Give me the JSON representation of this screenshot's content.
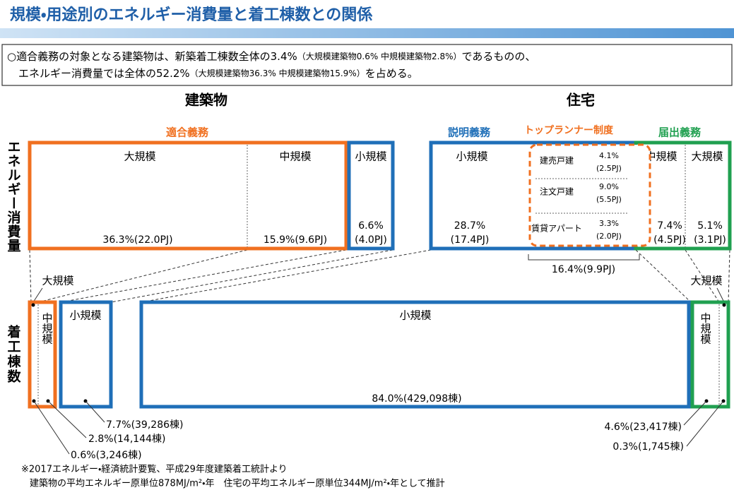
{
  "header": {
    "title": "規模・用途別のエネルギー消費量と着工棟数との関係"
  },
  "summary": {
    "line1": {
      "a": "○適合義務の対象となる建築物は、新築着工棟数全体の3.4%",
      "note": "（大規模建築物0.6% 中規模建築物2.8%）",
      "b": "であるものの、"
    },
    "line2": {
      "a": "エネルギー消費量では全体の52.2%",
      "note": "（大規模建築物36.3% 中規模建築物15.9%）",
      "b": "を占める。"
    }
  },
  "headings": {
    "building": "建築物",
    "house": "住宅"
  },
  "side_labels": {
    "energy": "エネルギー消費量",
    "starts": "着工棟数"
  },
  "groups": {
    "conformity": "適合義務",
    "explanation": "説明義務",
    "top_runner": "トップランナー制度",
    "notification": "届出義務"
  },
  "energy": {
    "building_large": {
      "label": "大規模",
      "value": "36.3%(22.0PJ)"
    },
    "building_medium": {
      "label": "中規模",
      "value": "15.9%(9.6PJ)"
    },
    "building_small": {
      "label": "小規模",
      "value": "6.6%",
      "pj": "(4.0PJ)"
    },
    "house_small": {
      "label": "小規模",
      "value": "28.7%",
      "pj": "(17.4PJ)"
    },
    "top_runner_rows": [
      {
        "label": "建売戸建",
        "value": "4.1%",
        "pj": "(2.5PJ)"
      },
      {
        "label": "注文戸建",
        "value": "9.0%",
        "pj": "(5.5PJ)"
      },
      {
        "label": "賃貸アパート",
        "value": "3.3%",
        "pj": "(2.0PJ)"
      }
    ],
    "top_runner_total": "16.4%(9.9PJ)",
    "house_medium": {
      "label": "中規模",
      "value": "7.4%",
      "pj": "(4.5PJ)"
    },
    "house_large": {
      "label": "大規模",
      "value": "5.1%",
      "pj": "(3.1PJ)"
    }
  },
  "starts": {
    "building_large_label": "大規模",
    "building_medium_label": "中規模",
    "building_small_label": "小規模",
    "house_small": {
      "label": "小規模",
      "value": "84.0%(429,098棟)"
    },
    "house_medium_label": "中規模",
    "house_large_label": "大規模",
    "callouts": [
      "7.7%(39,286棟)",
      "2.8%(14,144棟)",
      "0.6%(3,246棟)",
      "4.6%(23,417棟)",
      "0.3%(1,745棟)"
    ]
  },
  "footnotes": [
    "※2017エネルギー・経済統計要覧、平成29年度建築着工統計より",
    "建築物の平均エネルギー原単位878MJ/m²・年　住宅の平均エネルギー原単位344MJ/m²・年として推計"
  ]
}
